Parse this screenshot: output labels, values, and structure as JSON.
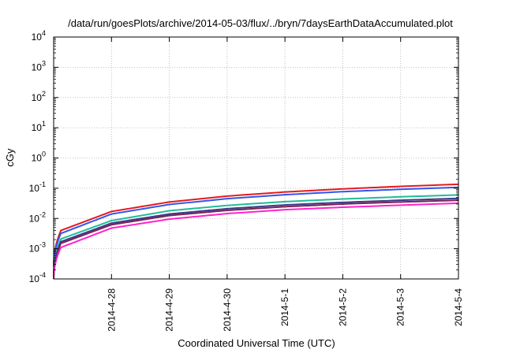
{
  "chart_data": {
    "type": "line",
    "title": "/data/run/goesPlots/archive/2014-05-03/flux/../bryn/7daysEarthDataAccumulated.plot",
    "xlabel": "Coordinated Universal Time (UTC)",
    "ylabel": "cGy",
    "x_ticks": [
      "2014-4-28",
      "2014-4-29",
      "2014-4-30",
      "2014-5-1",
      "2014-5-2",
      "2014-5-3",
      "2014-5-4"
    ],
    "y_ticks": [
      {
        "base": "10",
        "exp": "-4",
        "value": 0.0001
      },
      {
        "base": "10",
        "exp": "-3",
        "value": 0.001
      },
      {
        "base": "10",
        "exp": "-2",
        "value": 0.01
      },
      {
        "base": "10",
        "exp": "-1",
        "value": 0.1
      },
      {
        "base": "10",
        "exp": "0",
        "value": 1
      },
      {
        "base": "10",
        "exp": "1",
        "value": 10
      },
      {
        "base": "10",
        "exp": "2",
        "value": 100
      },
      {
        "base": "10",
        "exp": "3",
        "value": 1000
      },
      {
        "base": "10",
        "exp": "4",
        "value": 10000
      }
    ],
    "x_range": [
      "2014-04-27",
      "2014-05-04"
    ],
    "ylim": [
      0.0001,
      10000
    ],
    "y_scale": "log",
    "grid": true,
    "series": [
      {
        "color": "#e41a1c",
        "x": [
          "2014-04-27",
          "2014-04-27T03:00",
          "2014-04-28",
          "2014-04-29",
          "2014-04-30",
          "2014-05-01",
          "2014-05-02",
          "2014-05-03",
          "2014-05-04"
        ],
        "values": [
          0.0003,
          0.004,
          0.017,
          0.035,
          0.055,
          0.075,
          0.095,
          0.115,
          0.135
        ]
      },
      {
        "color": "#3355ee",
        "x": [
          "2014-04-27",
          "2014-04-27T03:00",
          "2014-04-28",
          "2014-04-29",
          "2014-04-30",
          "2014-05-01",
          "2014-05-02",
          "2014-05-03",
          "2014-05-04"
        ],
        "values": [
          0.00025,
          0.0032,
          0.014,
          0.029,
          0.045,
          0.061,
          0.077,
          0.092,
          0.107
        ]
      },
      {
        "color": "#22bb99",
        "x": [
          "2014-04-27",
          "2014-04-27T03:00",
          "2014-04-28",
          "2014-04-29",
          "2014-04-30",
          "2014-05-01",
          "2014-05-02",
          "2014-05-03",
          "2014-05-04"
        ],
        "values": [
          0.00015,
          0.0021,
          0.0085,
          0.018,
          0.027,
          0.036,
          0.044,
          0.052,
          0.06
        ]
      },
      {
        "color": "#3a3a8c",
        "x": [
          "2014-04-27",
          "2014-04-27T03:00",
          "2014-04-28",
          "2014-04-29",
          "2014-04-30",
          "2014-05-01",
          "2014-05-02",
          "2014-05-03",
          "2014-05-04"
        ],
        "values": [
          0.00012,
          0.0017,
          0.007,
          0.014,
          0.021,
          0.028,
          0.034,
          0.04,
          0.046
        ]
      },
      {
        "color": "#7a2255",
        "x": [
          "2014-04-27",
          "2014-04-27T03:00",
          "2014-04-28",
          "2014-04-29",
          "2014-04-30",
          "2014-05-01",
          "2014-05-02",
          "2014-05-03",
          "2014-05-04"
        ],
        "values": [
          0.0001,
          0.0015,
          0.0062,
          0.0125,
          0.0185,
          0.0245,
          0.03,
          0.035,
          0.04
        ]
      },
      {
        "color": "#ff22cc",
        "x": [
          "2014-04-27",
          "2014-04-27T03:00",
          "2014-04-28",
          "2014-04-29",
          "2014-04-30",
          "2014-05-01",
          "2014-05-02",
          "2014-05-03",
          "2014-05-04"
        ],
        "values": [
          0.0001,
          0.0011,
          0.0048,
          0.0095,
          0.0145,
          0.0195,
          0.0235,
          0.0275,
          0.032
        ]
      }
    ]
  }
}
